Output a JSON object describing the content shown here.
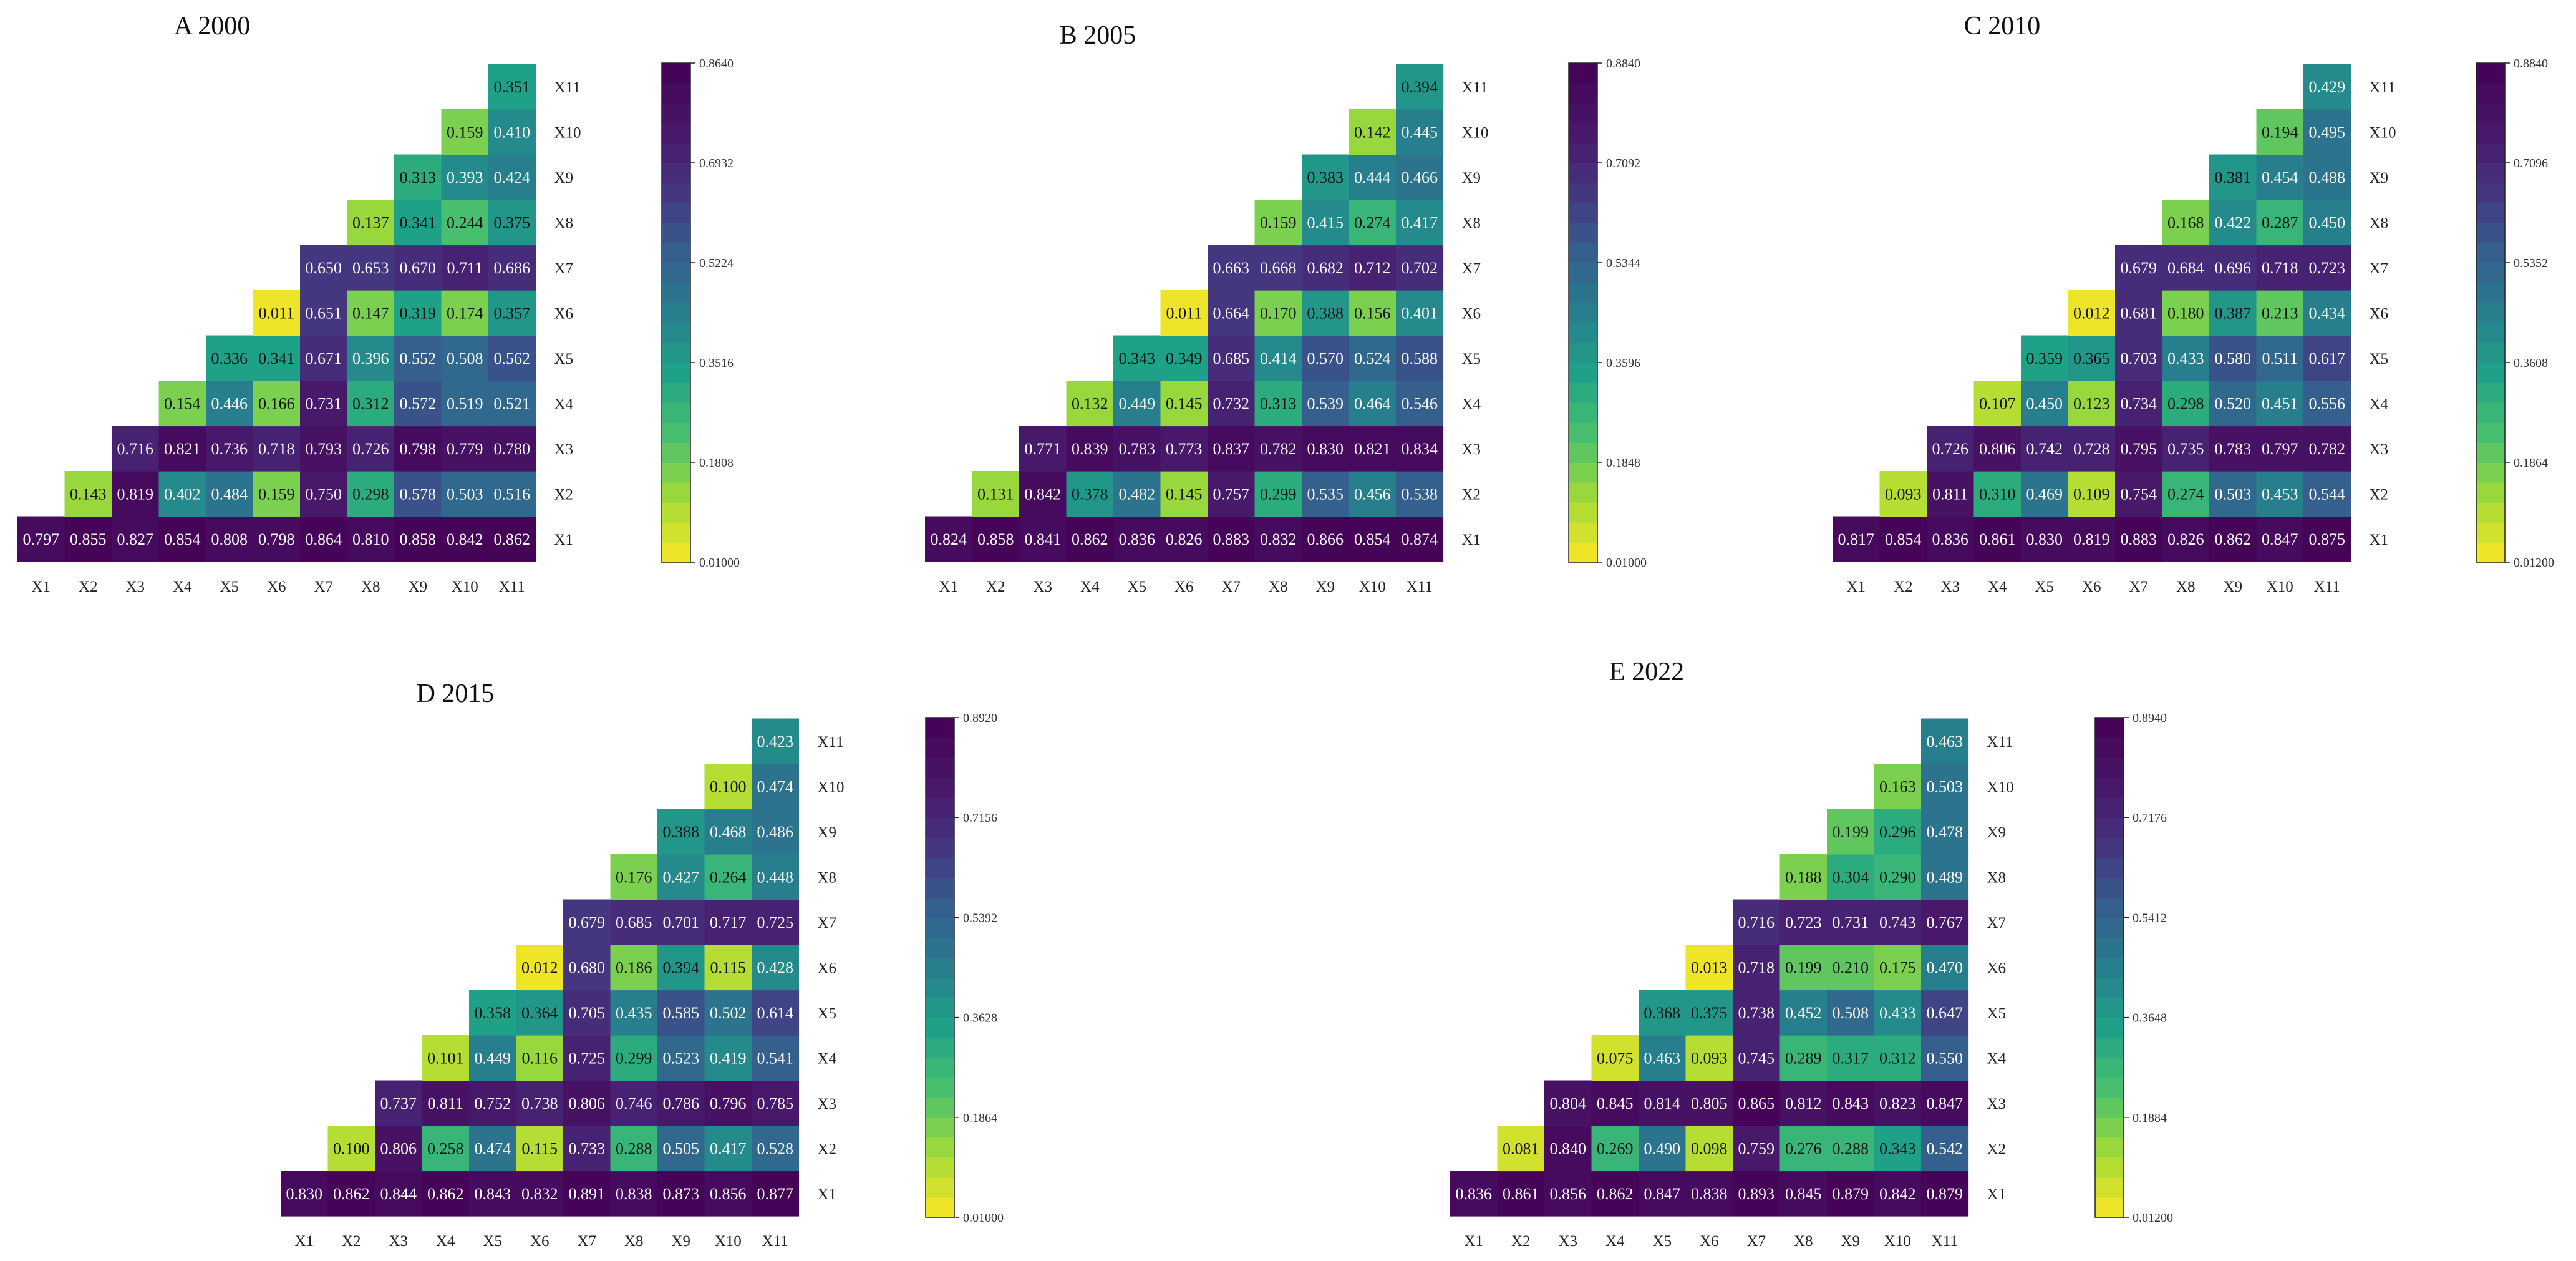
{
  "chart_data": [
    {
      "type": "heatmap",
      "title": "A 2000",
      "variables": [
        "X1",
        "X2",
        "X3",
        "X4",
        "X5",
        "X6",
        "X7",
        "X8",
        "X9",
        "X10",
        "X11"
      ],
      "colorbar": {
        "min": 0.01,
        "max": 0.864,
        "ticks": [
          "0.8640",
          "0.6932",
          "0.5224",
          "0.3516",
          "0.1808",
          "0.01000"
        ]
      },
      "rows": [
        {
          "label": "X1",
          "values": [
            0.797,
            0.855,
            0.827,
            0.854,
            0.808,
            0.798,
            0.864,
            0.81,
            0.858,
            0.842,
            0.862
          ]
        },
        {
          "label": "X2",
          "values": [
            0.143,
            0.819,
            0.402,
            0.484,
            0.159,
            0.75,
            0.298,
            0.578,
            0.503,
            0.516
          ]
        },
        {
          "label": "X3",
          "values": [
            0.716,
            0.821,
            0.736,
            0.718,
            0.793,
            0.726,
            0.798,
            0.779,
            0.78
          ]
        },
        {
          "label": "X4",
          "values": [
            0.154,
            0.446,
            0.166,
            0.731,
            0.312,
            0.572,
            0.519,
            0.521
          ]
        },
        {
          "label": "X5",
          "values": [
            0.336,
            0.341,
            0.671,
            0.396,
            0.552,
            0.508,
            0.562
          ]
        },
        {
          "label": "X6",
          "values": [
            0.011,
            0.651,
            0.147,
            0.319,
            0.174,
            0.357
          ]
        },
        {
          "label": "X7",
          "values": [
            0.65,
            0.653,
            0.67,
            0.711,
            0.686
          ]
        },
        {
          "label": "X8",
          "values": [
            0.137,
            0.341,
            0.244,
            0.375
          ]
        },
        {
          "label": "X9",
          "values": [
            0.313,
            0.393,
            0.424
          ]
        },
        {
          "label": "X10",
          "values": [
            0.159,
            0.41
          ]
        },
        {
          "label": "X11",
          "values": [
            0.351
          ]
        }
      ]
    },
    {
      "type": "heatmap",
      "title": "B 2005",
      "variables": [
        "X1",
        "X2",
        "X3",
        "X4",
        "X5",
        "X6",
        "X7",
        "X8",
        "X9",
        "X10",
        "X11"
      ],
      "colorbar": {
        "min": 0.01,
        "max": 0.884,
        "ticks": [
          "0.8840",
          "0.7092",
          "0.5344",
          "0.3596",
          "0.1848",
          "0.01000"
        ]
      },
      "rows": [
        {
          "label": "X1",
          "values": [
            0.824,
            0.858,
            0.841,
            0.862,
            0.836,
            0.826,
            0.883,
            0.832,
            0.866,
            0.854,
            0.874
          ]
        },
        {
          "label": "X2",
          "values": [
            0.131,
            0.842,
            0.378,
            0.482,
            0.145,
            0.757,
            0.299,
            0.535,
            0.456,
            0.538
          ]
        },
        {
          "label": "X3",
          "values": [
            0.771,
            0.839,
            0.783,
            0.773,
            0.837,
            0.782,
            0.83,
            0.821,
            0.834
          ]
        },
        {
          "label": "X4",
          "values": [
            0.132,
            0.449,
            0.145,
            0.732,
            0.313,
            0.539,
            0.464,
            0.546
          ]
        },
        {
          "label": "X5",
          "values": [
            0.343,
            0.349,
            0.685,
            0.414,
            0.57,
            0.524,
            0.588
          ]
        },
        {
          "label": "X6",
          "values": [
            0.011,
            0.664,
            0.17,
            0.388,
            0.156,
            0.401
          ]
        },
        {
          "label": "X7",
          "values": [
            0.663,
            0.668,
            0.682,
            0.712,
            0.702
          ]
        },
        {
          "label": "X8",
          "values": [
            0.159,
            0.415,
            0.274,
            0.417
          ]
        },
        {
          "label": "X9",
          "values": [
            0.383,
            0.444,
            0.466
          ]
        },
        {
          "label": "X10",
          "values": [
            0.142,
            0.445
          ]
        },
        {
          "label": "X11",
          "values": [
            0.394
          ]
        }
      ]
    },
    {
      "type": "heatmap",
      "title": "C 2010",
      "variables": [
        "X1",
        "X2",
        "X3",
        "X4",
        "X5",
        "X6",
        "X7",
        "X8",
        "X9",
        "X10",
        "X11"
      ],
      "colorbar": {
        "min": 0.012,
        "max": 0.884,
        "ticks": [
          "0.8840",
          "0.7096",
          "0.5352",
          "0.3608",
          "0.1864",
          "0.01200"
        ]
      },
      "rows": [
        {
          "label": "X1",
          "values": [
            0.817,
            0.854,
            0.836,
            0.861,
            0.83,
            0.819,
            0.883,
            0.826,
            0.862,
            0.847,
            0.875
          ]
        },
        {
          "label": "X2",
          "values": [
            0.093,
            0.811,
            0.31,
            0.469,
            0.109,
            0.754,
            0.274,
            0.503,
            0.453,
            0.544
          ]
        },
        {
          "label": "X3",
          "values": [
            0.726,
            0.806,
            0.742,
            0.728,
            0.795,
            0.735,
            0.783,
            0.797,
            0.782
          ]
        },
        {
          "label": "X4",
          "values": [
            0.107,
            0.45,
            0.123,
            0.734,
            0.298,
            0.52,
            0.451,
            0.556
          ]
        },
        {
          "label": "X5",
          "values": [
            0.359,
            0.365,
            0.703,
            0.433,
            0.58,
            0.511,
            0.617
          ]
        },
        {
          "label": "X6",
          "values": [
            0.012,
            0.681,
            0.18,
            0.387,
            0.213,
            0.434
          ]
        },
        {
          "label": "X7",
          "values": [
            0.679,
            0.684,
            0.696,
            0.718,
            0.723
          ]
        },
        {
          "label": "X8",
          "values": [
            0.168,
            0.422,
            0.287,
            0.45
          ]
        },
        {
          "label": "X9",
          "values": [
            0.381,
            0.454,
            0.488
          ]
        },
        {
          "label": "X10",
          "values": [
            0.194,
            0.495
          ]
        },
        {
          "label": "X11",
          "values": [
            0.429
          ]
        }
      ]
    },
    {
      "type": "heatmap",
      "title": "D 2015",
      "variables": [
        "X1",
        "X2",
        "X3",
        "X4",
        "X5",
        "X6",
        "X7",
        "X8",
        "X9",
        "X10",
        "X11"
      ],
      "colorbar": {
        "min": 0.01,
        "max": 0.892,
        "ticks": [
          "0.8920",
          "0.7156",
          "0.5392",
          "0.3628",
          "0.1864",
          "0.01000"
        ]
      },
      "rows": [
        {
          "label": "X1",
          "values": [
            0.83,
            0.862,
            0.844,
            0.862,
            0.843,
            0.832,
            0.891,
            0.838,
            0.873,
            0.856,
            0.877
          ]
        },
        {
          "label": "X2",
          "values": [
            0.1,
            0.806,
            0.258,
            0.474,
            0.115,
            0.733,
            0.288,
            0.505,
            0.417,
            0.528
          ]
        },
        {
          "label": "X3",
          "values": [
            0.737,
            0.811,
            0.752,
            0.738,
            0.806,
            0.746,
            0.786,
            0.796,
            0.785
          ]
        },
        {
          "label": "X4",
          "values": [
            0.101,
            0.449,
            0.116,
            0.725,
            0.299,
            0.523,
            0.419,
            0.541
          ]
        },
        {
          "label": "X5",
          "values": [
            0.358,
            0.364,
            0.705,
            0.435,
            0.585,
            0.502,
            0.614
          ]
        },
        {
          "label": "X6",
          "values": [
            0.012,
            0.68,
            0.186,
            0.394,
            0.115,
            0.428
          ]
        },
        {
          "label": "X7",
          "values": [
            0.679,
            0.685,
            0.701,
            0.717,
            0.725
          ]
        },
        {
          "label": "X8",
          "values": [
            0.176,
            0.427,
            0.264,
            0.448
          ]
        },
        {
          "label": "X9",
          "values": [
            0.388,
            0.468,
            0.486
          ]
        },
        {
          "label": "X10",
          "values": [
            0.1,
            0.474
          ]
        },
        {
          "label": "X11",
          "values": [
            0.423
          ]
        }
      ]
    },
    {
      "type": "heatmap",
      "title": "E 2022",
      "variables": [
        "X1",
        "X2",
        "X3",
        "X4",
        "X5",
        "X6",
        "X7",
        "X8",
        "X9",
        "X10",
        "X11"
      ],
      "colorbar": {
        "min": 0.012,
        "max": 0.894,
        "ticks": [
          "0.8940",
          "0.7176",
          "0.5412",
          "0.3648",
          "0.1884",
          "0.01200"
        ]
      },
      "rows": [
        {
          "label": "X1",
          "values": [
            0.836,
            0.861,
            0.856,
            0.862,
            0.847,
            0.838,
            0.893,
            0.845,
            0.879,
            0.842,
            0.879
          ]
        },
        {
          "label": "X2",
          "values": [
            0.081,
            0.84,
            0.269,
            0.49,
            0.098,
            0.759,
            0.276,
            0.288,
            0.343,
            0.542
          ]
        },
        {
          "label": "X3",
          "values": [
            0.804,
            0.845,
            0.814,
            0.805,
            0.865,
            0.812,
            0.843,
            0.823,
            0.847
          ]
        },
        {
          "label": "X4",
          "values": [
            0.075,
            0.463,
            0.093,
            0.745,
            0.289,
            0.317,
            0.312,
            0.55
          ]
        },
        {
          "label": "X5",
          "values": [
            0.368,
            0.375,
            0.738,
            0.452,
            0.508,
            0.433,
            0.647
          ]
        },
        {
          "label": "X6",
          "values": [
            0.013,
            0.718,
            0.199,
            0.21,
            0.175,
            0.47
          ]
        },
        {
          "label": "X7",
          "values": [
            0.716,
            0.723,
            0.731,
            0.743,
            0.767
          ]
        },
        {
          "label": "X8",
          "values": [
            0.188,
            0.304,
            0.29,
            0.489
          ]
        },
        {
          "label": "X9",
          "values": [
            0.199,
            0.296,
            0.478
          ]
        },
        {
          "label": "X10",
          "values": [
            0.163,
            0.503
          ]
        },
        {
          "label": "X11",
          "values": [
            0.463
          ]
        }
      ]
    }
  ]
}
